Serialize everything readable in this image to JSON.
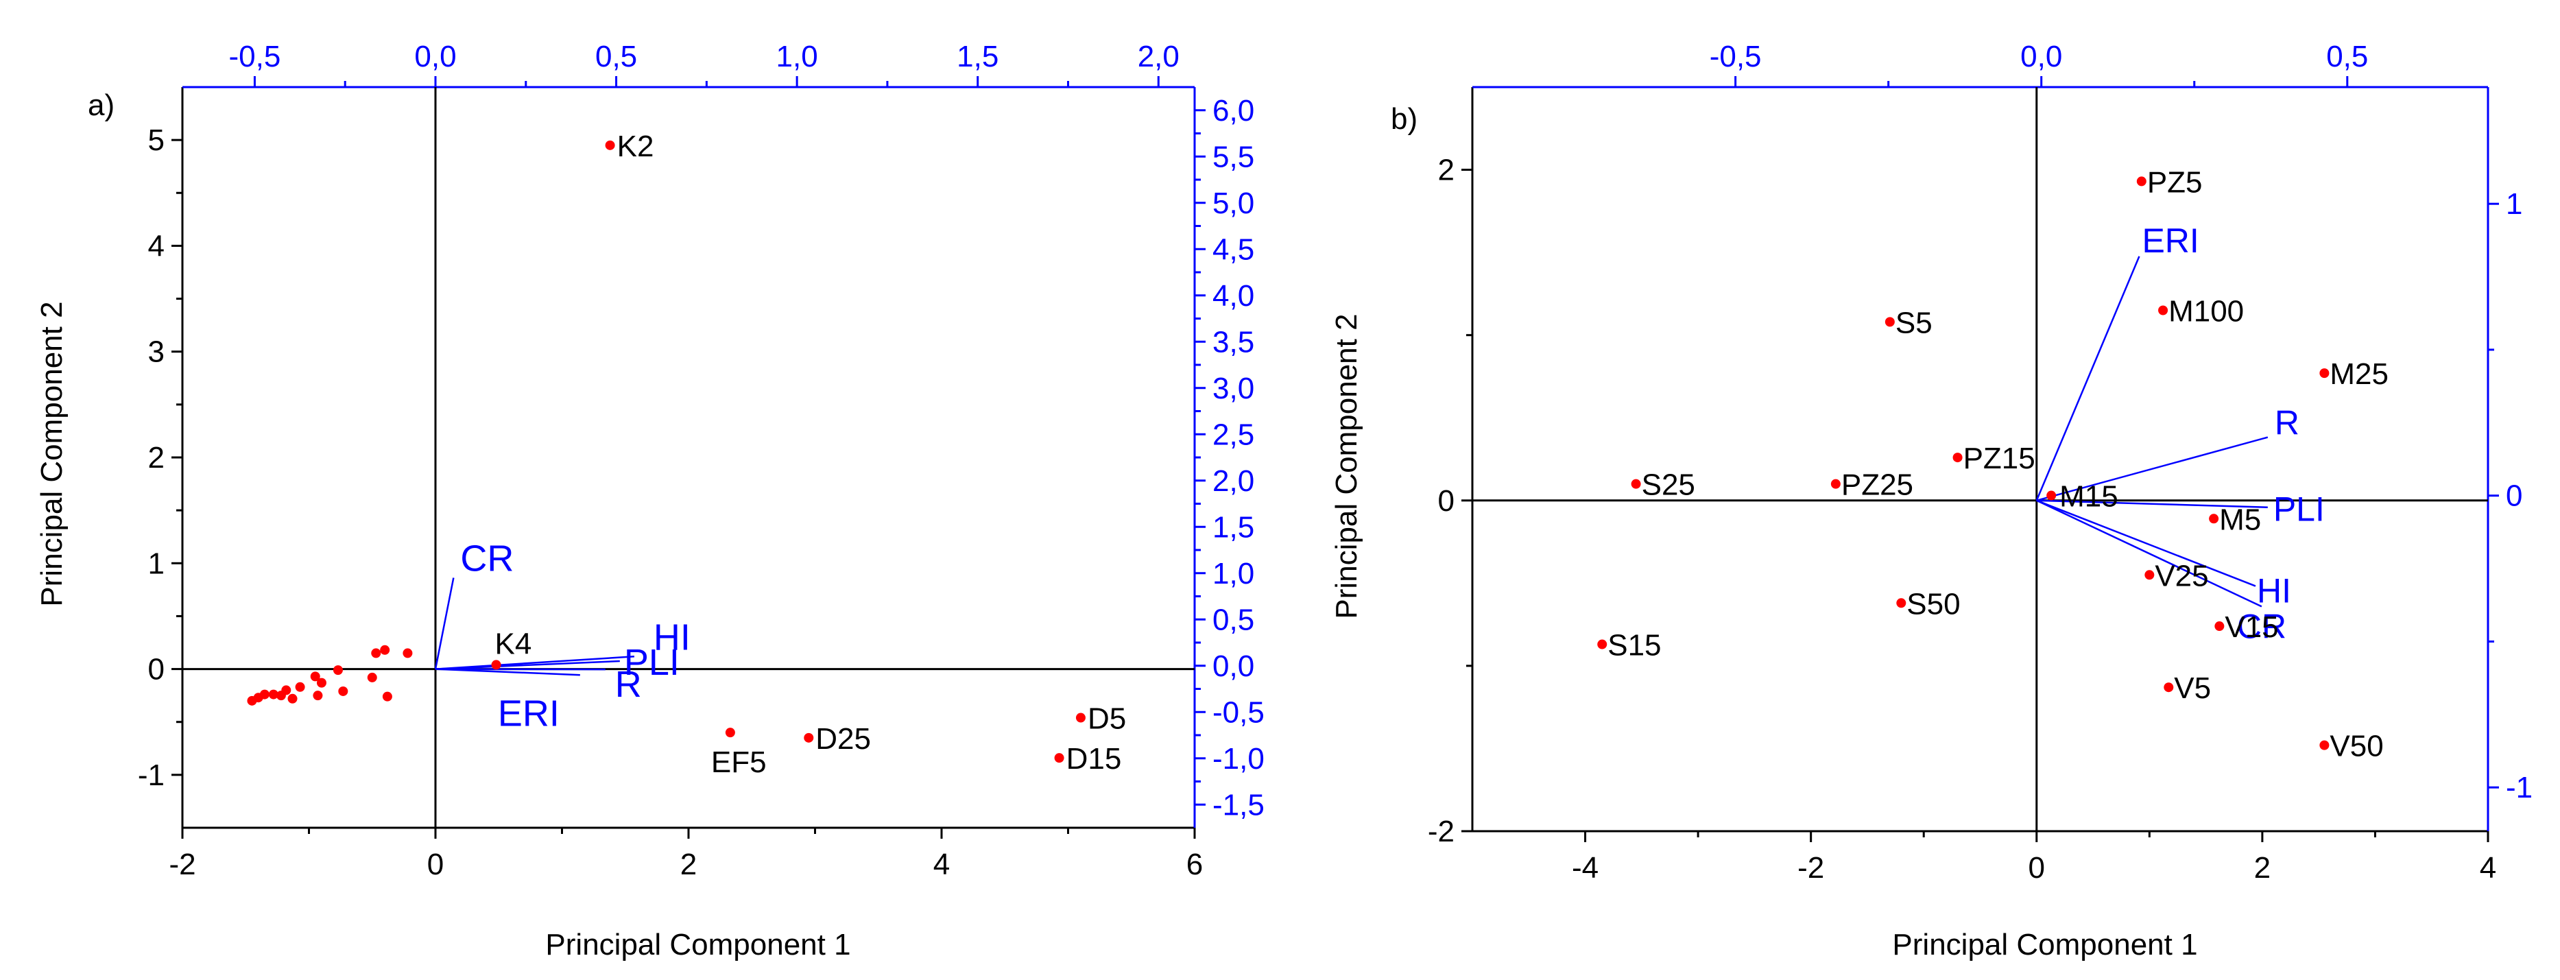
{
  "colors": {
    "scores": "#ff0000",
    "loadings": "#0000ff",
    "axes": "#000000"
  },
  "chart_data": [
    {
      "type": "scatter",
      "panel_label": "a)",
      "xlabel": "Principal Component 1",
      "ylabel": "Principal Component 2",
      "xlim": [
        -2,
        6
      ],
      "ylim": [
        -1.5,
        5.5
      ],
      "xticks": [
        "-2",
        "0",
        "2",
        "4",
        "6"
      ],
      "yticks": [
        "-1",
        "0",
        "1",
        "2",
        "3",
        "4",
        "5"
      ],
      "top_axis": {
        "lim": [
          -0.7,
          2.1
        ],
        "ticks": [
          "-0,5",
          "0,0",
          "0,5",
          "1,0",
          "1,5",
          "2,0"
        ]
      },
      "right_axis": {
        "lim": [
          -1.75,
          6.25
        ],
        "ticks": [
          "-1,5",
          "-1,0",
          "-0,5",
          "0,0",
          "0,5",
          "1,0",
          "1,5",
          "2,0",
          "2,5",
          "3,0",
          "3,5",
          "4,0",
          "4,5",
          "5,0",
          "5,5",
          "6,0"
        ]
      },
      "grid": false,
      "points": [
        {
          "label": "K2",
          "x": 1.38,
          "y": 4.95
        },
        {
          "label": "K4",
          "x": 0.48,
          "y": 0.04
        },
        {
          "label": "EF5",
          "x": 2.33,
          "y": -0.6
        },
        {
          "label": "D25",
          "x": 2.95,
          "y": -0.65
        },
        {
          "label": "D5",
          "x": 5.1,
          "y": -0.46
        },
        {
          "label": "D15",
          "x": 4.93,
          "y": -0.84
        },
        {
          "label": "",
          "x": -1.45,
          "y": -0.3
        },
        {
          "label": "",
          "x": -1.4,
          "y": -0.27
        },
        {
          "label": "",
          "x": -1.35,
          "y": -0.24
        },
        {
          "label": "",
          "x": -1.28,
          "y": -0.24
        },
        {
          "label": "",
          "x": -1.22,
          "y": -0.25
        },
        {
          "label": "",
          "x": -1.18,
          "y": -0.2
        },
        {
          "label": "",
          "x": -1.13,
          "y": -0.28
        },
        {
          "label": "",
          "x": -1.07,
          "y": -0.17
        },
        {
          "label": "",
          "x": -0.95,
          "y": -0.07
        },
        {
          "label": "",
          "x": -0.93,
          "y": -0.25
        },
        {
          "label": "",
          "x": -0.9,
          "y": -0.13
        },
        {
          "label": "",
          "x": -0.77,
          "y": -0.01
        },
        {
          "label": "",
          "x": -0.73,
          "y": -0.21
        },
        {
          "label": "",
          "x": -0.5,
          "y": -0.08
        },
        {
          "label": "",
          "x": -0.47,
          "y": 0.15
        },
        {
          "label": "",
          "x": -0.4,
          "y": 0.18
        },
        {
          "label": "",
          "x": -0.38,
          "y": -0.26
        },
        {
          "label": "",
          "x": -0.22,
          "y": 0.15
        }
      ],
      "loadings": [
        {
          "label": "CR",
          "x": 0.05,
          "y": 0.95
        },
        {
          "label": "HI",
          "x": 0.55,
          "y": 0.1
        },
        {
          "label": "PLI",
          "x": 0.51,
          "y": 0.05
        },
        {
          "label": "R",
          "x": 0.47,
          "y": -0.04
        },
        {
          "label": "ERI",
          "x": 0.4,
          "y": -0.1
        }
      ]
    },
    {
      "type": "scatter",
      "panel_label": "b)",
      "xlabel": "Principal Component 1",
      "ylabel": "Principal Component 2",
      "xlim": [
        -5,
        4
      ],
      "ylim": [
        -2,
        2.5
      ],
      "xticks": [
        "-4",
        "-2",
        "0",
        "2",
        "4"
      ],
      "yticks": [
        "-2",
        "0",
        "2"
      ],
      "top_axis": {
        "lim": [
          -0.93,
          0.73
        ],
        "ticks": [
          "-0,5",
          "0,0",
          "0,5"
        ]
      },
      "right_axis": {
        "lim": [
          -1.15,
          1.4
        ],
        "ticks": [
          "-1",
          "0",
          "1"
        ]
      },
      "grid": false,
      "points": [
        {
          "label": "PZ5",
          "x": 0.93,
          "y": 1.93
        },
        {
          "label": "S5",
          "x": -1.3,
          "y": 1.08
        },
        {
          "label": "M100",
          "x": 1.12,
          "y": 1.15
        },
        {
          "label": "M25",
          "x": 2.55,
          "y": 0.77
        },
        {
          "label": "PZ15",
          "x": -0.7,
          "y": 0.26
        },
        {
          "label": "S25",
          "x": -3.55,
          "y": 0.1
        },
        {
          "label": "PZ25",
          "x": -1.78,
          "y": 0.1
        },
        {
          "label": "M15",
          "x": 0.13,
          "y": 0.03
        },
        {
          "label": "M5",
          "x": 1.57,
          "y": -0.11
        },
        {
          "label": "V25",
          "x": 1.0,
          "y": -0.45
        },
        {
          "label": "S50",
          "x": -1.2,
          "y": -0.62
        },
        {
          "label": "V15",
          "x": 1.62,
          "y": -0.76
        },
        {
          "label": "S15",
          "x": -3.85,
          "y": -0.87
        },
        {
          "label": "V5",
          "x": 1.17,
          "y": -1.13
        },
        {
          "label": "V50",
          "x": 2.55,
          "y": -1.48
        }
      ],
      "loadings": [
        {
          "label": "ERI",
          "x": 0.16,
          "y": 0.82
        },
        {
          "label": "R",
          "x": 0.37,
          "y": 0.2
        },
        {
          "label": "PLI",
          "x": 0.37,
          "y": -0.04
        },
        {
          "label": "HI",
          "x": 0.35,
          "y": -0.31
        },
        {
          "label": "CR",
          "x": 0.36,
          "y": -0.38
        }
      ]
    }
  ]
}
